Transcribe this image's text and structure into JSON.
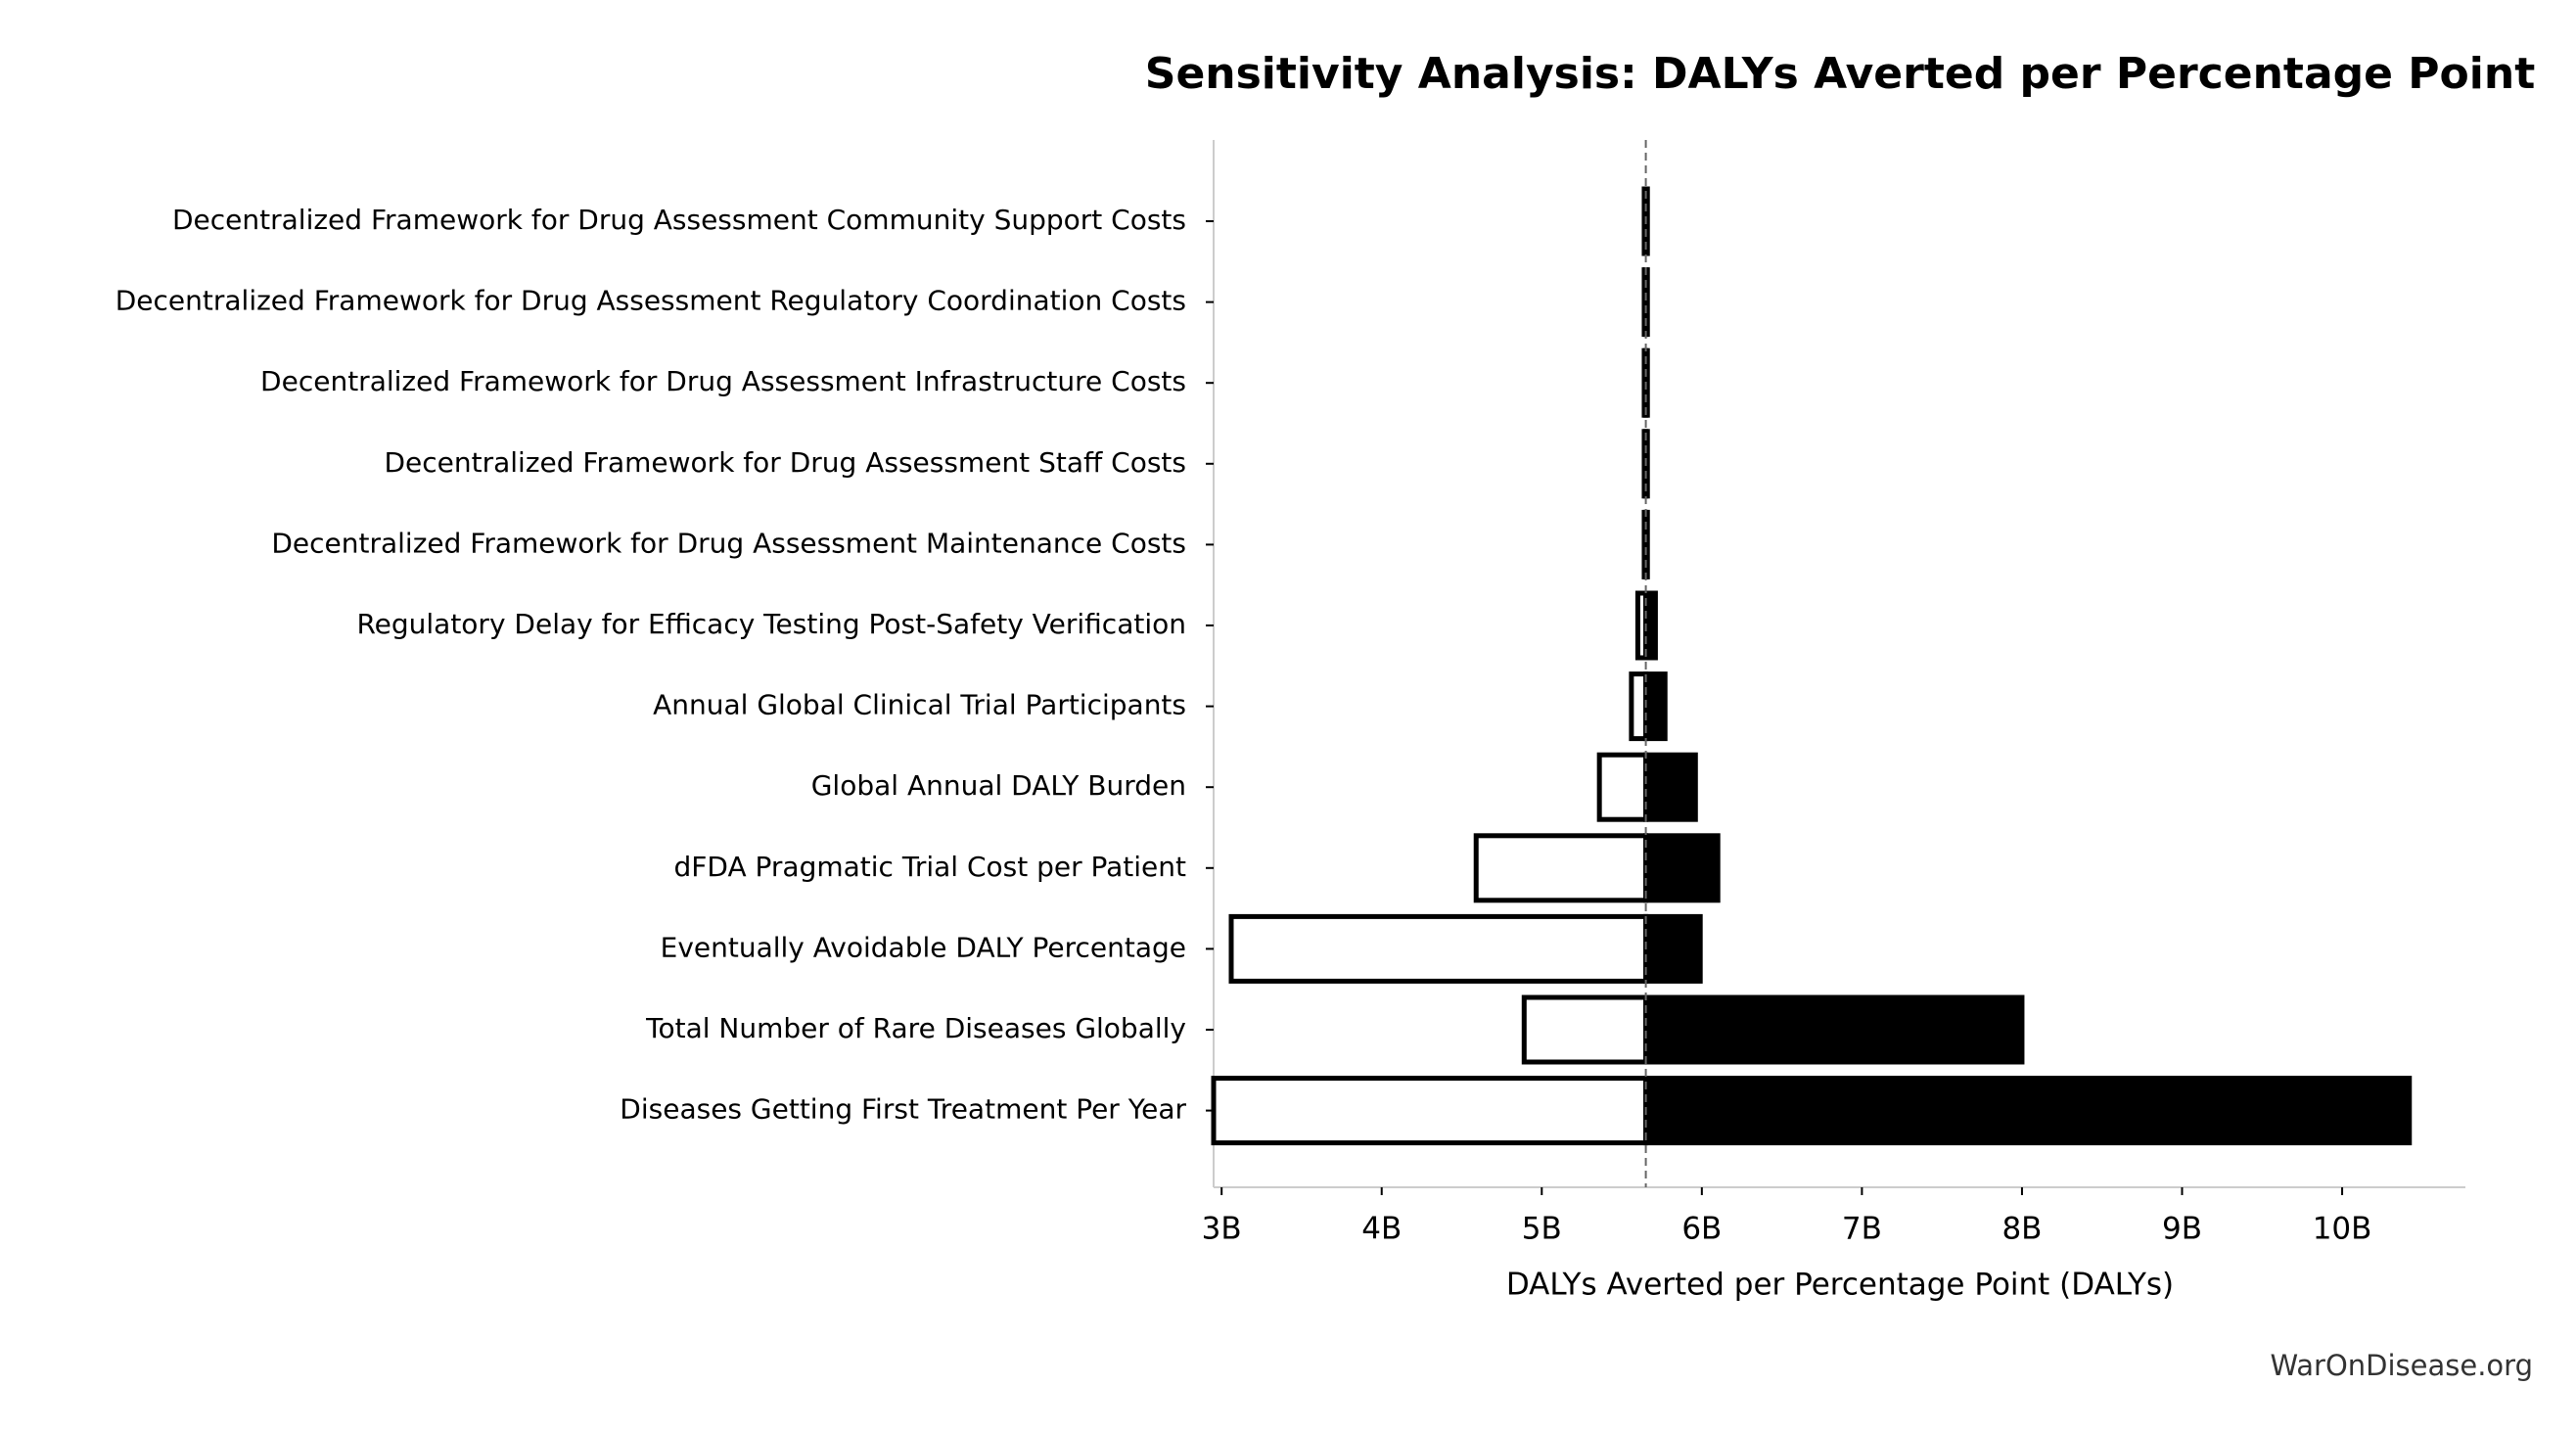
{
  "chart_data": {
    "type": "tornado",
    "title": "Sensitivity Analysis: DALYs Averted per Percentage Point",
    "x_label": "DALYs Averted per Percentage Point (DALYs)",
    "source": "WarOnDisease.org",
    "categories": [
      "Decentralized Framework for Drug Assessment Community Support Costs",
      "Decentralized Framework for Drug Assessment Regulatory Coordination Costs",
      "Decentralized Framework for Drug Assessment Infrastructure Costs",
      "Decentralized Framework for Drug Assessment Staff Costs",
      "Decentralized Framework for Drug Assessment Maintenance Costs",
      "Regulatory Delay for Efficacy Testing Post-Safety Verification",
      "Annual Global Clinical Trial Participants",
      "Global Annual DALY Burden",
      "dFDA Pragmatic Trial Cost per Patient",
      "Eventually Avoidable DALY Percentage",
      "Total Number of Rare Diseases Globally",
      "Diseases Getting First Treatment Per Year"
    ],
    "baseline": 5650000000,
    "low": [
      5640000000,
      5640000000,
      5640000000,
      5640000000,
      5640000000,
      5600000000,
      5560000000,
      5360000000,
      4590000000,
      3060000000,
      4890000000,
      2950000000
    ],
    "high": [
      5660000000,
      5660000000,
      5660000000,
      5660000000,
      5660000000,
      5710000000,
      5770000000,
      5960000000,
      6100000000,
      5990000000,
      8000000000,
      10420000000
    ],
    "low_color": "#ffffff",
    "high_color": "#000000",
    "xlim": [
      2950000000,
      10770000000
    ],
    "xticks": [
      {
        "value": 3000000000,
        "label": "3B"
      },
      {
        "value": 4000000000,
        "label": "4B"
      },
      {
        "value": 5000000000,
        "label": "5B"
      },
      {
        "value": 6000000000,
        "label": "6B"
      },
      {
        "value": 7000000000,
        "label": "7B"
      },
      {
        "value": 8000000000,
        "label": "8B"
      },
      {
        "value": 9000000000,
        "label": "9B"
      },
      {
        "value": 10000000000,
        "label": "10B"
      }
    ]
  }
}
